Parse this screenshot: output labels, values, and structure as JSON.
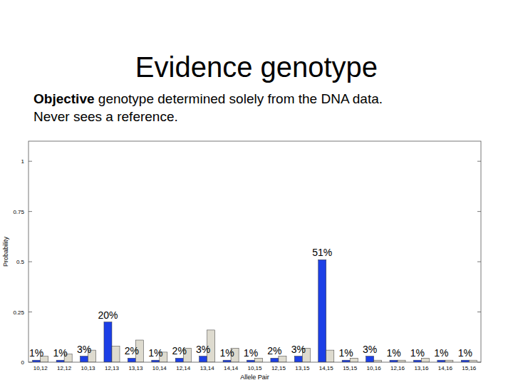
{
  "chart_data": {
    "type": "bar",
    "title": "Evidence genotype",
    "subtitle": [
      "Objective genotype determined solely from the DNA data.",
      "Never sees a reference."
    ],
    "x_label": "Allele Pair",
    "y_label": "Probability",
    "categories": [
      "10,12",
      "12,12",
      "10,13",
      "12,13",
      "13,13",
      "10,14",
      "12,14",
      "13,14",
      "14,14",
      "10,15",
      "12,15",
      "13,15",
      "14,15",
      "15,15",
      "10,16",
      "12,16",
      "13,16",
      "14,16",
      "15,16"
    ],
    "series": [
      {
        "color": "#1c3fe6",
        "data_labels": true,
        "values": [
          0.01,
          0.01,
          0.03,
          0.2,
          0.02,
          0.01,
          0.02,
          0.03,
          0.01,
          0.01,
          0.02,
          0.03,
          0.51,
          0.01,
          0.03,
          0.01,
          0.01,
          0.01,
          0.01
        ],
        "value_labels": [
          "1%",
          "1%",
          "3%",
          "20%",
          "2%",
          "1%",
          "2%",
          "3%",
          "1%",
          "1%",
          "2%",
          "3%",
          "51%",
          "1%",
          "3%",
          "1%",
          "1%",
          "1%",
          "1%"
        ]
      },
      {
        "color": "#dedbcf",
        "values": [
          0.03,
          0.04,
          0.06,
          0.08,
          0.11,
          0.05,
          0.07,
          0.16,
          0.07,
          0.02,
          0.03,
          0.07,
          0.06,
          0.02,
          0.01,
          0.01,
          0.02,
          0.01,
          0.01
        ]
      }
    ],
    "ylim": [
      0,
      1.1
    ],
    "yticks": [
      0,
      0.25,
      0.5,
      0.75,
      1
    ],
    "grid": false
  }
}
